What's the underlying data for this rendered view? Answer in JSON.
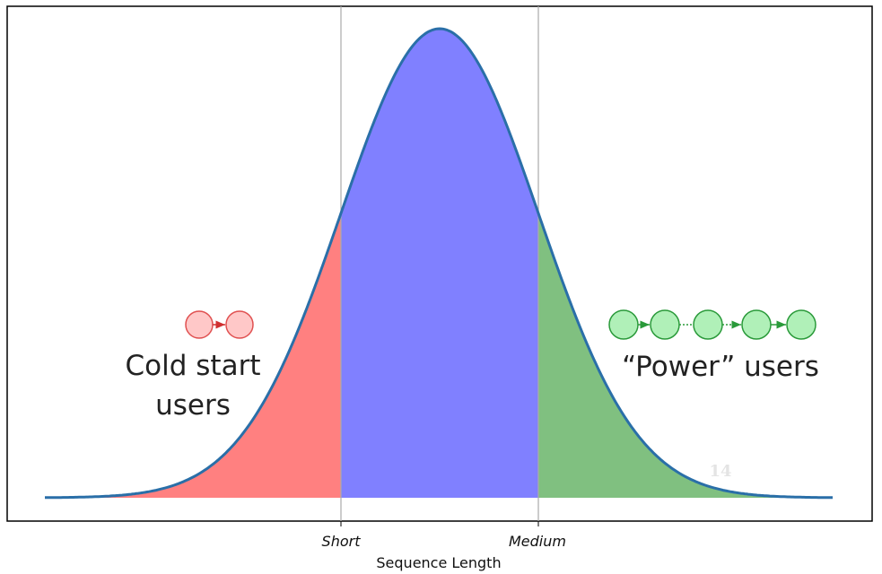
{
  "x_axis": {
    "label": "Sequence Length",
    "ticks": [
      "Short",
      "Medium"
    ]
  },
  "annotations": {
    "left": [
      "Cold start",
      "users"
    ],
    "right": "“Power” users",
    "watermark": "14"
  }
}
